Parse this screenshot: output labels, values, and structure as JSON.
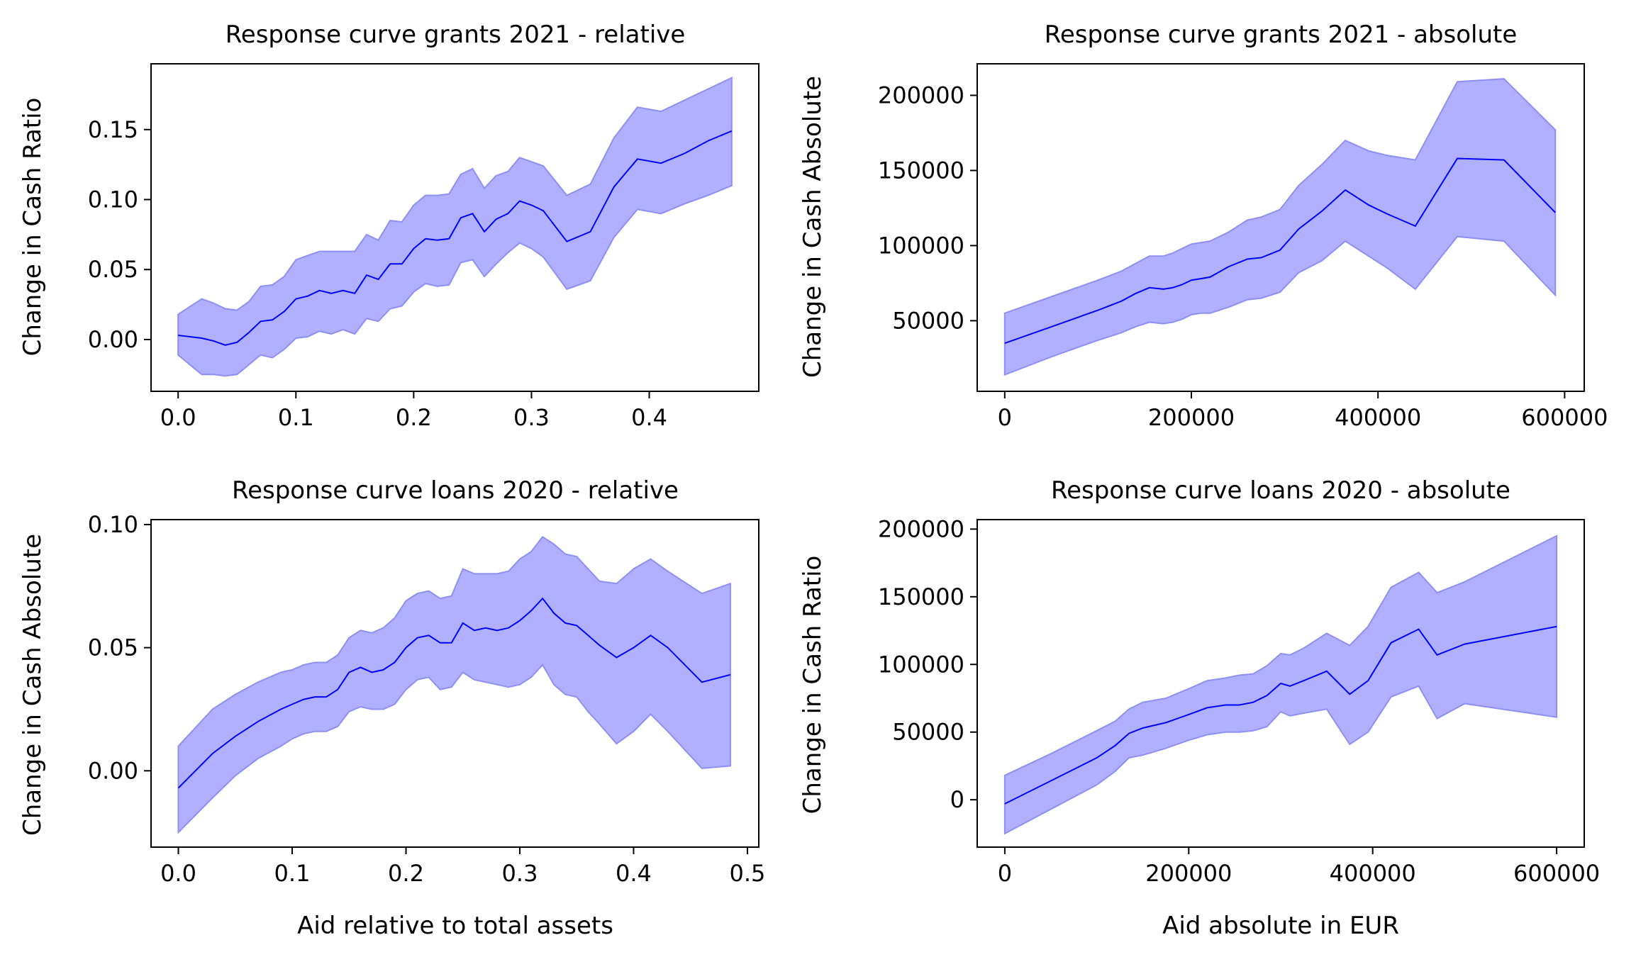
{
  "chart_data": [
    {
      "type": "line",
      "title": "Response curve grants 2021 - relative",
      "xlabel": "",
      "ylabel": "Change in Cash Ratio",
      "xlim": [
        -0.023,
        0.493
      ],
      "ylim": [
        -0.037,
        0.197
      ],
      "xticks": [
        0.0,
        0.1,
        0.2,
        0.3,
        0.4
      ],
      "xtick_labels": [
        "0.0",
        "0.1",
        "0.2",
        "0.3",
        "0.4"
      ],
      "yticks": [
        0.0,
        0.05,
        0.1,
        0.15
      ],
      "ytick_labels": [
        "0.00",
        "0.05",
        "0.10",
        "0.15"
      ],
      "grid": false,
      "line_color": "#0000ff",
      "band_color": "#b0b0ff",
      "band_edge_color": "#8e8ef5",
      "x": [
        0.0,
        0.02,
        0.03,
        0.04,
        0.05,
        0.06,
        0.07,
        0.08,
        0.09,
        0.1,
        0.11,
        0.12,
        0.13,
        0.14,
        0.15,
        0.16,
        0.17,
        0.18,
        0.19,
        0.2,
        0.21,
        0.22,
        0.23,
        0.24,
        0.25,
        0.26,
        0.27,
        0.28,
        0.29,
        0.3,
        0.31,
        0.33,
        0.35,
        0.37,
        0.39,
        0.41,
        0.43,
        0.45,
        0.47
      ],
      "series": [
        {
          "values": [
            0.003,
            0.001,
            -0.001,
            -0.004,
            -0.002,
            0.005,
            0.013,
            0.014,
            0.02,
            0.029,
            0.031,
            0.035,
            0.033,
            0.035,
            0.033,
            0.046,
            0.043,
            0.054,
            0.054,
            0.065,
            0.072,
            0.071,
            0.072,
            0.087,
            0.09,
            0.077,
            0.086,
            0.09,
            0.099,
            0.096,
            0.092,
            0.07,
            0.077,
            0.109,
            0.129,
            0.126,
            0.133,
            0.142,
            0.149
          ],
          "lower": [
            -0.011,
            -0.025,
            -0.025,
            -0.026,
            -0.025,
            -0.018,
            -0.011,
            -0.013,
            -0.007,
            0.001,
            0.002,
            0.006,
            0.004,
            0.007,
            0.004,
            0.015,
            0.013,
            0.022,
            0.024,
            0.034,
            0.04,
            0.038,
            0.039,
            0.055,
            0.057,
            0.045,
            0.054,
            0.062,
            0.069,
            0.065,
            0.059,
            0.036,
            0.042,
            0.073,
            0.093,
            0.09,
            0.097,
            0.103,
            0.11
          ],
          "upper": [
            0.018,
            0.029,
            0.026,
            0.022,
            0.021,
            0.027,
            0.038,
            0.039,
            0.045,
            0.057,
            0.06,
            0.063,
            0.063,
            0.063,
            0.063,
            0.075,
            0.071,
            0.085,
            0.084,
            0.096,
            0.103,
            0.103,
            0.104,
            0.118,
            0.122,
            0.108,
            0.117,
            0.12,
            0.13,
            0.127,
            0.124,
            0.103,
            0.111,
            0.144,
            0.166,
            0.163,
            0.171,
            0.179,
            0.187
          ]
        }
      ]
    },
    {
      "type": "line",
      "title": "Response curve grants 2021 - absolute",
      "xlabel": "",
      "ylabel": "Change in Cash Absolute",
      "xlim": [
        -29500,
        621000
      ],
      "ylim": [
        3000,
        221000
      ],
      "xticks": [
        0,
        200000,
        400000,
        600000
      ],
      "xtick_labels": [
        "0",
        "200000",
        "400000",
        "600000"
      ],
      "yticks": [
        50000,
        100000,
        150000,
        200000
      ],
      "ytick_labels": [
        "50000",
        "100000",
        "150000",
        "200000"
      ],
      "grid": false,
      "line_color": "#0000ff",
      "band_color": "#b0b0ff",
      "band_edge_color": "#8e8ef5",
      "x": [
        0,
        50000,
        100000,
        125000,
        140000,
        155000,
        170000,
        180000,
        190000,
        200000,
        210000,
        220000,
        240000,
        260000,
        275000,
        295000,
        315000,
        340000,
        365000,
        390000,
        410000,
        440000,
        485000,
        535000,
        590000
      ],
      "series": [
        {
          "values": [
            35000,
            46000,
            57000,
            63000,
            68000,
            72000,
            71000,
            72000,
            74000,
            77000,
            78000,
            79000,
            86000,
            91000,
            92000,
            97000,
            111000,
            123000,
            137000,
            127000,
            121000,
            113000,
            158000,
            157000,
            122000
          ],
          "lower": [
            14000,
            26000,
            37000,
            42000,
            46000,
            49000,
            48000,
            49000,
            51000,
            54000,
            55000,
            55000,
            59000,
            64000,
            65000,
            69000,
            82000,
            90000,
            103000,
            93000,
            85000,
            71000,
            106000,
            103000,
            67000
          ],
          "upper": [
            55000,
            66000,
            77000,
            83000,
            88000,
            93000,
            93000,
            95000,
            98000,
            101000,
            102000,
            103000,
            109000,
            117000,
            119000,
            124000,
            140000,
            154000,
            170000,
            163000,
            160000,
            157000,
            209000,
            211000,
            177000
          ]
        }
      ]
    },
    {
      "type": "line",
      "title": "Response curve loans 2020 - relative",
      "xlabel": "Aid relative to total assets",
      "ylabel": "Change in Cash Absolute",
      "xlim": [
        -0.024,
        0.51
      ],
      "ylim": [
        -0.031,
        0.102
      ],
      "xticks": [
        0.0,
        0.1,
        0.2,
        0.3,
        0.4,
        0.5
      ],
      "xtick_labels": [
        "0.0",
        "0.1",
        "0.2",
        "0.3",
        "0.4",
        "0.5"
      ],
      "yticks": [
        0.0,
        0.05,
        0.1
      ],
      "ytick_labels": [
        "0.00",
        "0.05",
        "0.10"
      ],
      "grid": false,
      "line_color": "#0000ff",
      "band_color": "#b0b0ff",
      "band_edge_color": "#8e8ef5",
      "x": [
        0.0,
        0.03,
        0.05,
        0.07,
        0.09,
        0.1,
        0.11,
        0.12,
        0.13,
        0.14,
        0.15,
        0.16,
        0.17,
        0.18,
        0.19,
        0.2,
        0.21,
        0.22,
        0.23,
        0.24,
        0.25,
        0.26,
        0.27,
        0.28,
        0.29,
        0.3,
        0.31,
        0.32,
        0.33,
        0.34,
        0.35,
        0.36,
        0.37,
        0.385,
        0.4,
        0.415,
        0.43,
        0.46,
        0.485
      ],
      "series": [
        {
          "values": [
            -0.007,
            0.007,
            0.014,
            0.02,
            0.025,
            0.027,
            0.029,
            0.03,
            0.03,
            0.033,
            0.04,
            0.042,
            0.04,
            0.041,
            0.044,
            0.05,
            0.054,
            0.055,
            0.052,
            0.052,
            0.06,
            0.057,
            0.058,
            0.057,
            0.058,
            0.061,
            0.065,
            0.07,
            0.064,
            0.06,
            0.059,
            0.055,
            0.051,
            0.046,
            0.05,
            0.055,
            0.05,
            0.036,
            0.039
          ],
          "lower": [
            -0.025,
            -0.011,
            -0.002,
            0.005,
            0.01,
            0.013,
            0.015,
            0.016,
            0.016,
            0.018,
            0.024,
            0.026,
            0.025,
            0.025,
            0.027,
            0.033,
            0.037,
            0.038,
            0.033,
            0.034,
            0.04,
            0.037,
            0.036,
            0.035,
            0.034,
            0.035,
            0.038,
            0.043,
            0.035,
            0.031,
            0.03,
            0.024,
            0.019,
            0.011,
            0.016,
            0.023,
            0.016,
            0.001,
            0.002
          ],
          "upper": [
            0.01,
            0.025,
            0.031,
            0.036,
            0.04,
            0.041,
            0.043,
            0.044,
            0.044,
            0.047,
            0.054,
            0.057,
            0.056,
            0.058,
            0.062,
            0.069,
            0.072,
            0.073,
            0.07,
            0.071,
            0.082,
            0.08,
            0.08,
            0.08,
            0.081,
            0.086,
            0.089,
            0.095,
            0.092,
            0.088,
            0.087,
            0.082,
            0.077,
            0.076,
            0.082,
            0.086,
            0.081,
            0.072,
            0.076
          ]
        }
      ]
    },
    {
      "type": "line",
      "title": "Response curve loans 2020 - absolute",
      "xlabel": "Aid absolute in EUR",
      "ylabel": "Change in Cash Ratio",
      "xlim": [
        -30000,
        630000
      ],
      "ylim": [
        -35000,
        207000
      ],
      "xticks": [
        0,
        200000,
        400000,
        600000
      ],
      "xtick_labels": [
        "0",
        "200000",
        "400000",
        "600000"
      ],
      "yticks": [
        0,
        50000,
        100000,
        150000,
        200000
      ],
      "ytick_labels": [
        "0",
        "50000",
        "100000",
        "150000",
        "200000"
      ],
      "grid": false,
      "line_color": "#0000ff",
      "band_color": "#b0b0ff",
      "band_edge_color": "#8e8ef5",
      "x": [
        0,
        50000,
        100000,
        120000,
        135000,
        150000,
        175000,
        200000,
        220000,
        240000,
        255000,
        270000,
        285000,
        300000,
        310000,
        325000,
        350000,
        375000,
        395000,
        420000,
        450000,
        470000,
        500000,
        600000
      ],
      "series": [
        {
          "values": [
            -3000,
            14000,
            31000,
            40000,
            49000,
            53000,
            57000,
            63000,
            68000,
            70000,
            70000,
            72000,
            77000,
            86000,
            84000,
            88000,
            95000,
            78000,
            88000,
            116000,
            126000,
            107000,
            115000,
            128000
          ],
          "lower": [
            -25000,
            -7000,
            11000,
            21000,
            31000,
            33000,
            38000,
            44000,
            48000,
            50000,
            50000,
            51000,
            54000,
            65000,
            62000,
            64000,
            67000,
            41000,
            50000,
            76000,
            84000,
            60000,
            71000,
            61000
          ],
          "upper": [
            18000,
            34000,
            51000,
            58000,
            67000,
            72000,
            75000,
            82000,
            88000,
            90000,
            92000,
            93000,
            99000,
            108000,
            107000,
            112000,
            123000,
            114000,
            128000,
            157000,
            168000,
            153000,
            161000,
            195000
          ]
        }
      ]
    }
  ]
}
